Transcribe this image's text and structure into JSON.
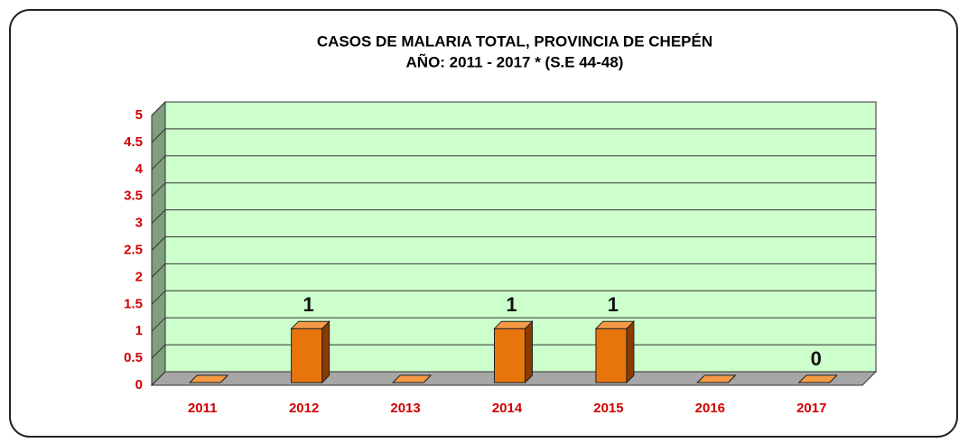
{
  "chart_data": {
    "type": "bar3d",
    "title": "CASOS DE MALARIA TOTAL, PROVINCIA DE CHEPÉN",
    "subtitle": "AÑO: 2011 - 2017 * (S.E 44-48)",
    "categories": [
      "2011",
      "2012",
      "2013",
      "2014",
      "2015",
      "2016",
      "2017"
    ],
    "values": [
      0,
      1,
      0,
      1,
      1,
      0,
      0
    ],
    "value_labels": [
      null,
      "1",
      null,
      "1",
      "1",
      null,
      "0"
    ],
    "color": "#e8740c",
    "ylim": [
      0,
      5
    ],
    "yticks": [
      0,
      0.5,
      1,
      1.5,
      2,
      2.5,
      3,
      3.5,
      4,
      4.5,
      5
    ],
    "grid": true
  }
}
